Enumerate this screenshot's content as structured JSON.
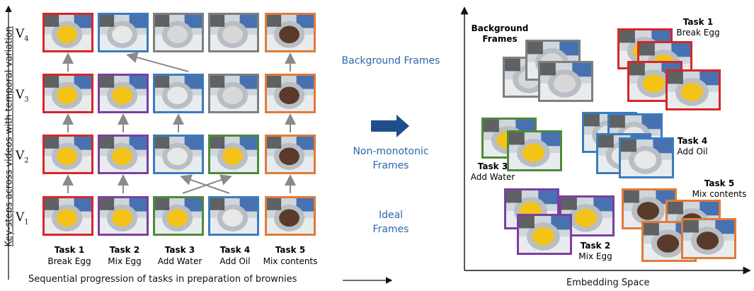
{
  "left_panel": {
    "y_axis_label_prefix": "Key-steps across videos with ",
    "y_axis_label_emph": "temporal variation",
    "x_axis_label": "Sequential progression of tasks in preparation of brownies",
    "rows": [
      {
        "letter": "V",
        "index": "4"
      },
      {
        "letter": "V",
        "index": "3"
      },
      {
        "letter": "V",
        "index": "2"
      },
      {
        "letter": "V",
        "index": "1"
      }
    ],
    "tasks": [
      {
        "number": "Task 1",
        "name": "Break Egg",
        "color": "#d62728"
      },
      {
        "number": "Task 2",
        "name": "Mix Egg",
        "color": "#7b3fa0"
      },
      {
        "number": "Task 3",
        "name": "Add Water",
        "color": "#4e8a3a"
      },
      {
        "number": "Task 4",
        "name": "Add Oil",
        "color": "#3a7cbf"
      },
      {
        "number": "Task 5",
        "name": "Mix contents",
        "color": "#e07b39"
      }
    ],
    "background_color": "#7f7f7f",
    "grid": [
      [
        "t1",
        "t4",
        "bg",
        "bg",
        "t5"
      ],
      [
        "t1",
        "t2",
        "t4",
        "bg",
        "t5"
      ],
      [
        "t1",
        "t2",
        "t4",
        "t3",
        "t5"
      ],
      [
        "t1",
        "t2",
        "t3",
        "t4",
        "t5"
      ]
    ]
  },
  "middle": {
    "background_frames": "Background Frames",
    "non_monotonic_frames": "Non-monotonic Frames",
    "ideal_frames": "Ideal Frames",
    "accent_color": "#2a68a6"
  },
  "right_panel": {
    "x_axis_label": "Embedding Space",
    "background_label": "Background Frames",
    "clusters": [
      {
        "number": "Task 1",
        "name": "Break Egg"
      },
      {
        "number": "Task 2",
        "name": "Mix Egg"
      },
      {
        "number": "Task 3",
        "name": "Add Water"
      },
      {
        "number": "Task 4",
        "name": "Add Oil"
      },
      {
        "number": "Task 5",
        "name": "Mix contents"
      }
    ]
  }
}
